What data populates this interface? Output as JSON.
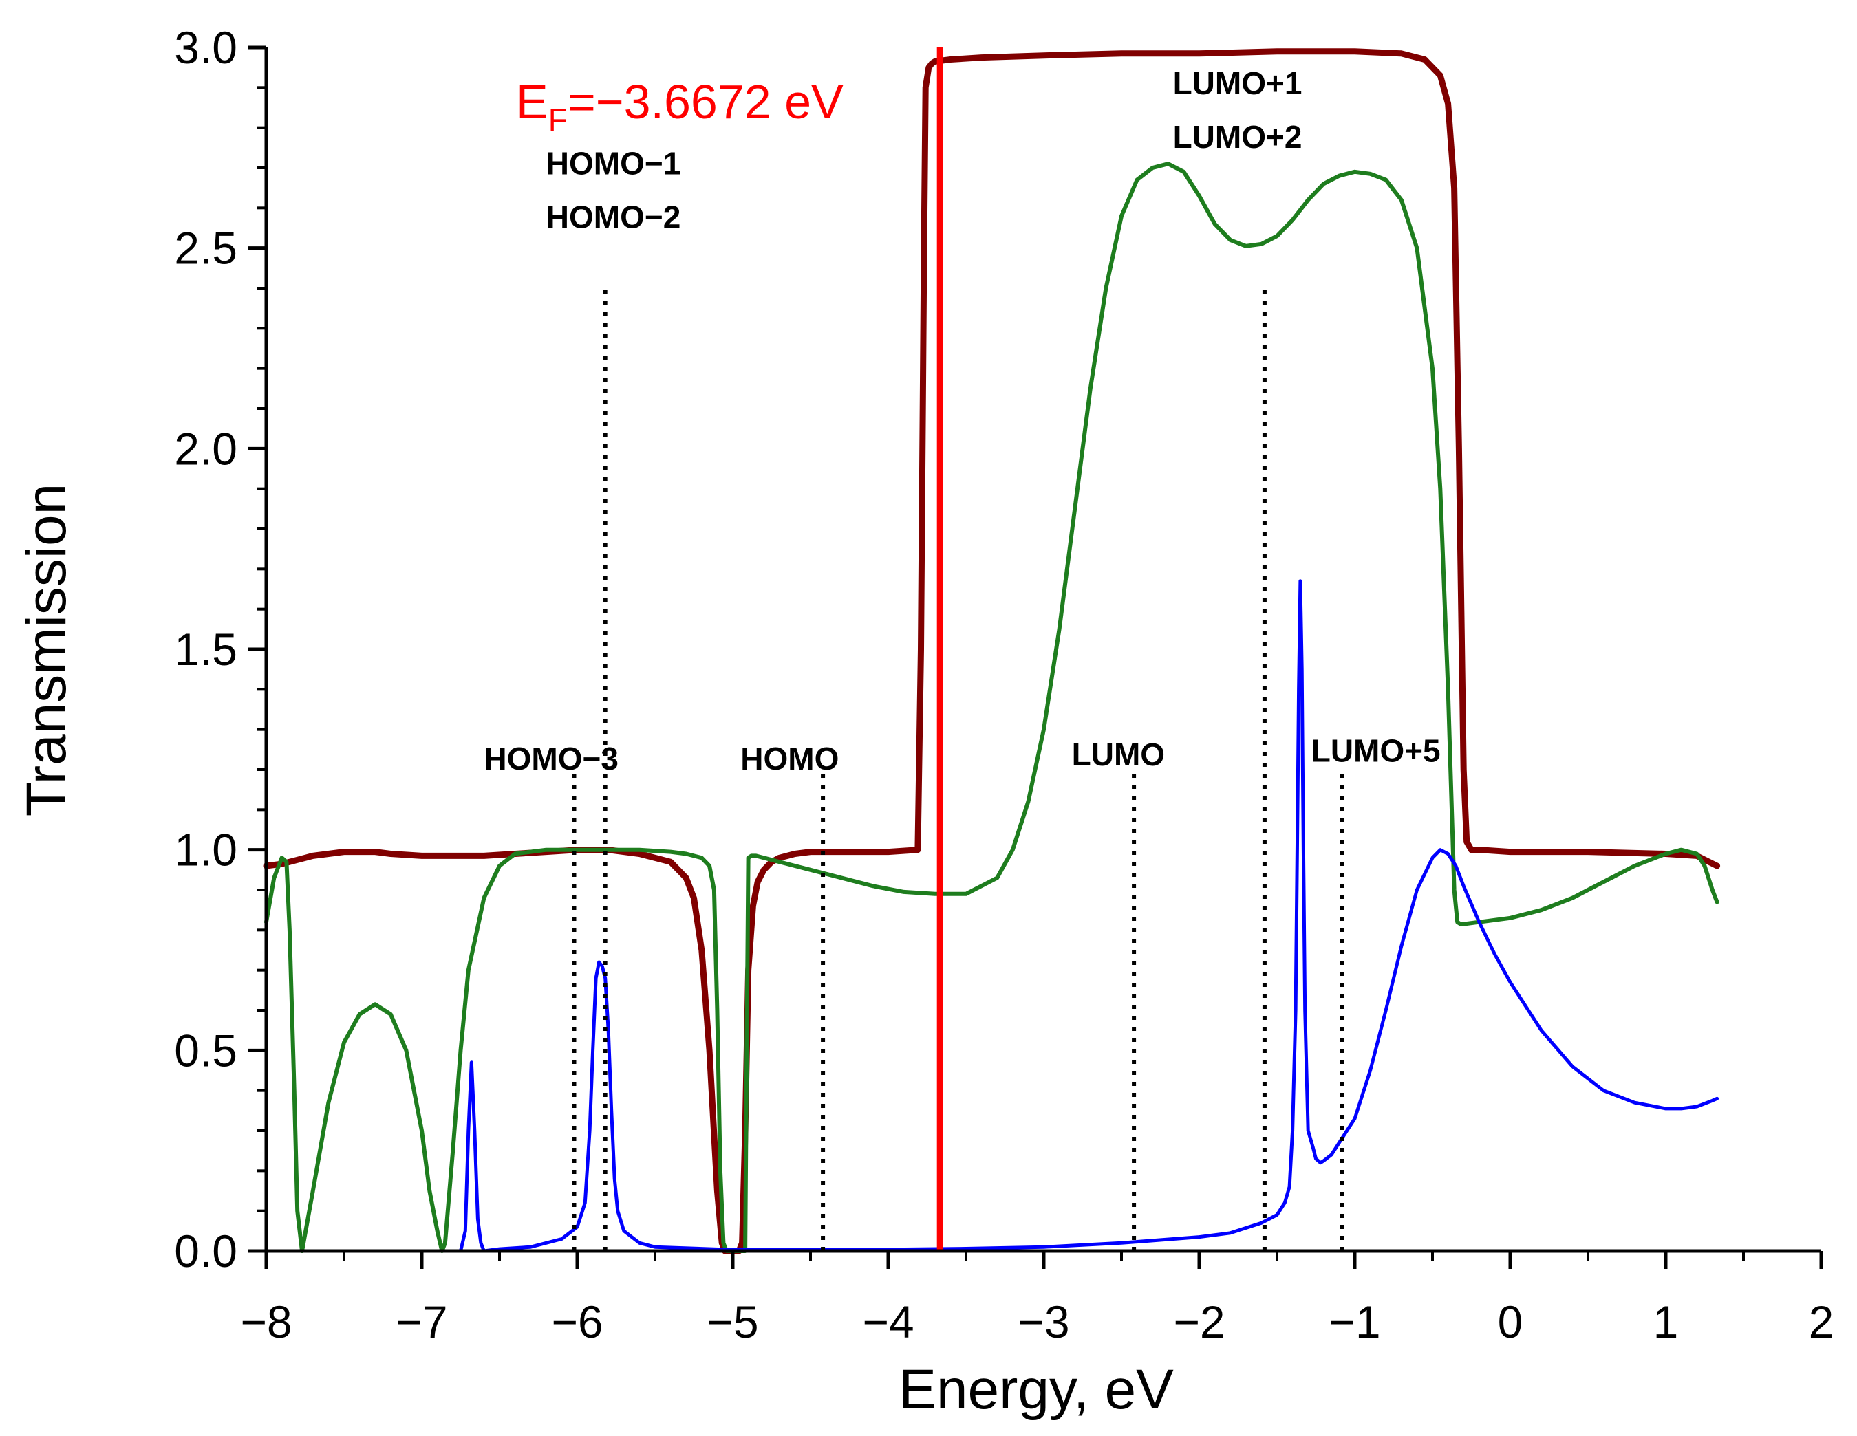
{
  "chart_data": {
    "type": "line",
    "title": "",
    "xlabel": "Energy, eV",
    "ylabel": "Transmission",
    "xlim": [
      -8,
      2
    ],
    "ylim": [
      0,
      3
    ],
    "xticks": [
      -8,
      -7,
      -6,
      -5,
      -4,
      -3,
      -2,
      -1,
      0,
      1,
      2
    ],
    "xtick_labels": [
      "−8",
      "−7",
      "−6",
      "−5",
      "−4",
      "−3",
      "−2",
      "−1",
      "0",
      "1",
      "2"
    ],
    "yticks": [
      0,
      0.5,
      1,
      1.5,
      2,
      2.5,
      3
    ],
    "ytick_labels": [
      "0.0",
      "0.5",
      "1.0",
      "1.5",
      "2.0",
      "2.5",
      "3.0"
    ],
    "grid": false,
    "fermi_level": {
      "x": -3.6672,
      "label_main": "E",
      "label_sub": "F",
      "label_rest": "=−3.6672 eV",
      "color": "#ff0000"
    },
    "orbital_markers": [
      {
        "name": "homo-3",
        "x": -6.02,
        "top": 1.2,
        "label_lines": [
          "HOMO−3"
        ],
        "label_x": -6.6,
        "label_y": 1.2
      },
      {
        "name": "homo-1-2",
        "x": -5.82,
        "top": 2.4,
        "label_lines": [
          "HOMO−1",
          "HOMO−2"
        ],
        "label_x": -6.2,
        "label_y": 2.55
      },
      {
        "name": "homo",
        "x": -4.42,
        "top": 1.2,
        "label_lines": [
          "HOMO"
        ],
        "label_x": -4.95,
        "label_y": 1.2
      },
      {
        "name": "lumo",
        "x": -2.42,
        "top": 1.2,
        "label_lines": [
          "LUMO"
        ],
        "label_x": -2.82,
        "label_y": 1.21
      },
      {
        "name": "lumo-1-2",
        "x": -1.58,
        "top": 2.4,
        "label_lines": [
          "LUMO+1",
          "LUMO+2"
        ],
        "label_x": -2.17,
        "label_y": 2.75
      },
      {
        "name": "lumo-5",
        "x": -1.08,
        "top": 1.2,
        "label_lines": [
          "LUMO+5"
        ],
        "label_x": -1.28,
        "label_y": 1.22
      }
    ],
    "series": [
      {
        "name": "dark-red",
        "color": "#800000",
        "width": 9,
        "x": [
          -8.0,
          -7.9,
          -7.8,
          -7.7,
          -7.6,
          -7.5,
          -7.4,
          -7.3,
          -7.2,
          -7.0,
          -6.8,
          -6.6,
          -6.4,
          -6.2,
          -6.0,
          -5.8,
          -5.6,
          -5.4,
          -5.3,
          -5.25,
          -5.2,
          -5.15,
          -5.1,
          -5.07,
          -5.05,
          -5.02,
          -5.0,
          -4.98,
          -4.96,
          -4.94,
          -4.92,
          -4.9,
          -4.87,
          -4.84,
          -4.8,
          -4.75,
          -4.7,
          -4.6,
          -4.5,
          -4.4,
          -4.2,
          -4.0,
          -3.81,
          -3.79,
          -3.77,
          -3.76,
          -3.74,
          -3.72,
          -3.7,
          -3.6,
          -3.4,
          -3.0,
          -2.5,
          -2.0,
          -1.5,
          -1.0,
          -0.7,
          -0.55,
          -0.45,
          -0.4,
          -0.36,
          -0.33,
          -0.3,
          -0.28,
          -0.25,
          -0.2,
          0.0,
          0.5,
          1.0,
          1.2,
          1.33
        ],
        "y": [
          0.96,
          0.965,
          0.975,
          0.985,
          0.99,
          0.995,
          0.995,
          0.995,
          0.99,
          0.985,
          0.985,
          0.985,
          0.99,
          0.995,
          1.0,
          1.0,
          0.99,
          0.97,
          0.93,
          0.88,
          0.75,
          0.5,
          0.15,
          0.02,
          0.0,
          0.0,
          0.0,
          0.0,
          0.0,
          0.02,
          0.3,
          0.7,
          0.86,
          0.92,
          0.95,
          0.97,
          0.98,
          0.99,
          0.995,
          0.995,
          0.995,
          0.995,
          1.0,
          1.5,
          2.5,
          2.9,
          2.95,
          2.96,
          2.965,
          2.97,
          2.975,
          2.98,
          2.985,
          2.985,
          2.99,
          2.99,
          2.985,
          2.97,
          2.93,
          2.86,
          2.65,
          2.0,
          1.2,
          1.02,
          1.0,
          1.0,
          0.995,
          0.995,
          0.99,
          0.985,
          0.96
        ]
      },
      {
        "name": "green",
        "color": "#1e7d1e",
        "width": 6,
        "x": [
          -8.0,
          -7.95,
          -7.9,
          -7.87,
          -7.85,
          -7.82,
          -7.8,
          -7.77,
          -7.7,
          -7.6,
          -7.5,
          -7.4,
          -7.3,
          -7.2,
          -7.1,
          -7.0,
          -6.95,
          -6.9,
          -6.87,
          -6.85,
          -6.8,
          -6.75,
          -6.7,
          -6.6,
          -6.5,
          -6.4,
          -6.3,
          -6.2,
          -6.0,
          -5.8,
          -5.6,
          -5.4,
          -5.3,
          -5.2,
          -5.15,
          -5.12,
          -5.1,
          -5.08,
          -5.06,
          -5.04,
          -5.02,
          -5.0,
          -4.98,
          -4.96,
          -4.94,
          -4.92,
          -4.91,
          -4.9,
          -4.88,
          -4.85,
          -4.7,
          -4.5,
          -4.3,
          -4.1,
          -3.9,
          -3.7,
          -3.5,
          -3.3,
          -3.2,
          -3.1,
          -3.0,
          -2.9,
          -2.8,
          -2.7,
          -2.6,
          -2.5,
          -2.4,
          -2.3,
          -2.2,
          -2.1,
          -2.0,
          -1.9,
          -1.8,
          -1.7,
          -1.6,
          -1.5,
          -1.4,
          -1.3,
          -1.2,
          -1.1,
          -1.0,
          -0.9,
          -0.8,
          -0.7,
          -0.6,
          -0.5,
          -0.45,
          -0.4,
          -0.36,
          -0.34,
          -0.32,
          -0.3,
          -0.2,
          0.0,
          0.2,
          0.4,
          0.6,
          0.8,
          1.0,
          1.1,
          1.2,
          1.25,
          1.3,
          1.33
        ],
        "y": [
          0.82,
          0.93,
          0.98,
          0.97,
          0.8,
          0.4,
          0.1,
          0.0,
          0.15,
          0.37,
          0.52,
          0.59,
          0.615,
          0.59,
          0.5,
          0.3,
          0.15,
          0.05,
          0.0,
          0.02,
          0.25,
          0.5,
          0.7,
          0.88,
          0.96,
          0.99,
          0.995,
          1.0,
          1.0,
          1.0,
          1.0,
          0.995,
          0.99,
          0.98,
          0.96,
          0.9,
          0.6,
          0.2,
          0.02,
          0.0,
          0.0,
          0.0,
          0.0,
          0.0,
          0.0,
          0.0,
          0.5,
          0.98,
          0.985,
          0.985,
          0.97,
          0.95,
          0.93,
          0.91,
          0.895,
          0.89,
          0.89,
          0.93,
          1.0,
          1.12,
          1.3,
          1.55,
          1.85,
          2.15,
          2.4,
          2.58,
          2.67,
          2.7,
          2.71,
          2.69,
          2.63,
          2.56,
          2.52,
          2.505,
          2.51,
          2.53,
          2.57,
          2.62,
          2.66,
          2.68,
          2.69,
          2.685,
          2.67,
          2.62,
          2.5,
          2.2,
          1.9,
          1.4,
          0.9,
          0.82,
          0.815,
          0.815,
          0.82,
          0.83,
          0.85,
          0.88,
          0.92,
          0.96,
          0.99,
          1.0,
          0.99,
          0.96,
          0.9,
          0.87
        ]
      },
      {
        "name": "blue",
        "color": "#0000ff",
        "width": 5,
        "x": [
          -8.0,
          -7.0,
          -6.75,
          -6.72,
          -6.7,
          -6.68,
          -6.66,
          -6.64,
          -6.62,
          -6.6,
          -6.5,
          -6.3,
          -6.1,
          -6.0,
          -5.95,
          -5.92,
          -5.9,
          -5.88,
          -5.86,
          -5.84,
          -5.82,
          -5.8,
          -5.78,
          -5.76,
          -5.74,
          -5.7,
          -5.6,
          -5.5,
          -5.0,
          -4.5,
          -4.0,
          -3.5,
          -3.0,
          -2.5,
          -2.0,
          -1.8,
          -1.6,
          -1.5,
          -1.45,
          -1.42,
          -1.4,
          -1.38,
          -1.37,
          -1.36,
          -1.35,
          -1.34,
          -1.33,
          -1.32,
          -1.3,
          -1.27,
          -1.25,
          -1.22,
          -1.2,
          -1.15,
          -1.1,
          -1.0,
          -0.9,
          -0.8,
          -0.7,
          -0.6,
          -0.5,
          -0.45,
          -0.4,
          -0.35,
          -0.3,
          -0.2,
          -0.1,
          0.0,
          0.2,
          0.4,
          0.6,
          0.8,
          1.0,
          1.1,
          1.2,
          1.3,
          1.33
        ],
        "y": [
          0.0,
          0.0,
          0.0,
          0.05,
          0.3,
          0.47,
          0.3,
          0.08,
          0.02,
          0.0,
          0.005,
          0.01,
          0.03,
          0.06,
          0.12,
          0.3,
          0.5,
          0.68,
          0.72,
          0.71,
          0.68,
          0.55,
          0.35,
          0.18,
          0.1,
          0.05,
          0.02,
          0.01,
          0.003,
          0.003,
          0.004,
          0.006,
          0.01,
          0.02,
          0.035,
          0.045,
          0.07,
          0.09,
          0.12,
          0.16,
          0.3,
          0.6,
          1.0,
          1.4,
          1.67,
          1.45,
          1.0,
          0.6,
          0.3,
          0.26,
          0.23,
          0.22,
          0.225,
          0.24,
          0.27,
          0.33,
          0.45,
          0.6,
          0.76,
          0.9,
          0.98,
          1.0,
          0.99,
          0.96,
          0.91,
          0.82,
          0.74,
          0.67,
          0.55,
          0.46,
          0.4,
          0.37,
          0.355,
          0.355,
          0.36,
          0.375,
          0.38
        ]
      }
    ]
  }
}
